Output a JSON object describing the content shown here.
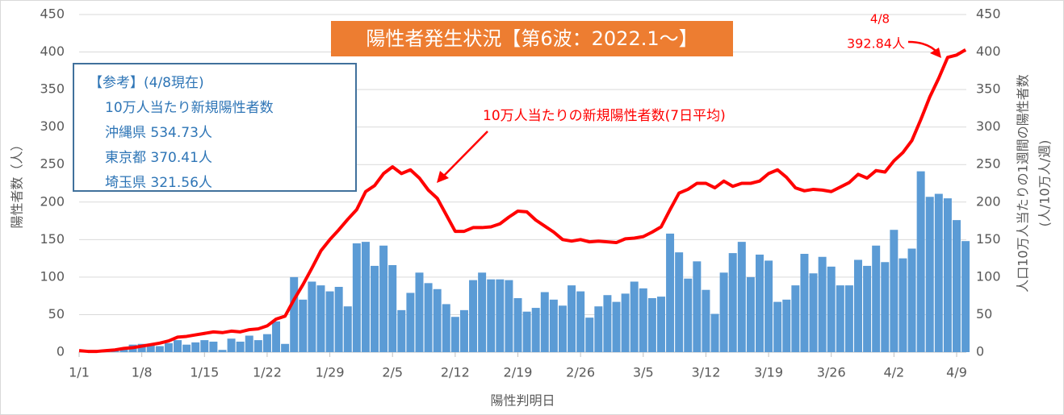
{
  "chart_data": {
    "type": "bar_line",
    "title": "陽性者発生状況【第6波：2022.1～】",
    "x_label": "陽性判明日",
    "y_label": "陽性者数（人）",
    "y2_label": [
      "人口10万人当たりの1週間の陽性者数",
      "(人/10万人/週)"
    ],
    "line_annotation": "10万人当たりの新規陽性者数(7日平均)",
    "point_annotation": [
      "4/8",
      "392.84人"
    ],
    "reference": [
      "【参考】(4/8現在)",
      "10万人当たり新規陽性者数",
      "沖縄県 534.73人",
      "東京都 370.41人",
      "埼玉県 321.56人"
    ],
    "categories": [
      "1/1",
      null,
      null,
      null,
      null,
      null,
      null,
      "1/8",
      null,
      null,
      null,
      null,
      null,
      null,
      "1/15",
      null,
      null,
      null,
      null,
      null,
      null,
      "1/22",
      null,
      null,
      null,
      null,
      null,
      null,
      "1/29",
      null,
      null,
      null,
      null,
      null,
      null,
      "2/5",
      null,
      null,
      null,
      null,
      null,
      null,
      "2/12",
      null,
      null,
      null,
      null,
      null,
      null,
      "2/19",
      null,
      null,
      null,
      null,
      null,
      null,
      "2/26",
      null,
      null,
      null,
      null,
      null,
      null,
      "3/5",
      null,
      null,
      null,
      null,
      null,
      null,
      "3/12",
      null,
      null,
      null,
      null,
      null,
      null,
      "3/19",
      null,
      null,
      null,
      null,
      null,
      null,
      "3/26",
      null,
      null,
      null,
      null,
      null,
      null,
      "4/2",
      null,
      null,
      null,
      null,
      null,
      null,
      "4/9",
      null
    ],
    "series": [
      {
        "name": "陽性者数",
        "type": "bar",
        "axis": "y",
        "color": "#5b9bd5",
        "values": [
          0,
          0,
          1,
          2,
          3,
          5,
          10,
          11,
          9,
          8,
          12,
          16,
          10,
          13,
          16,
          14,
          3,
          18,
          14,
          22,
          16,
          24,
          41,
          11,
          100,
          70,
          94,
          89,
          81,
          87,
          61,
          145,
          147,
          115,
          142,
          116,
          56,
          79,
          106,
          92,
          84,
          64,
          47,
          56,
          96,
          106,
          97,
          97,
          96,
          72,
          54,
          59,
          80,
          70,
          62,
          89,
          81,
          46,
          61,
          76,
          67,
          78,
          94,
          85,
          72,
          74,
          158,
          133,
          98,
          121,
          83,
          51,
          106,
          132,
          147,
          100,
          130,
          122,
          67,
          70,
          89,
          131,
          105,
          127,
          114,
          89,
          89,
          123,
          115,
          142,
          120,
          163,
          125,
          138,
          241,
          207,
          211,
          205,
          176,
          148
        ]
      },
      {
        "name": "10万人当たりの新規陽性者数(7日平均)",
        "type": "line",
        "axis": "y2",
        "color": "#ff0000",
        "values": [
          2,
          1,
          1,
          2,
          3,
          5,
          6,
          8,
          10,
          12,
          15,
          20,
          21,
          23,
          25,
          27,
          26,
          28,
          27,
          30,
          31,
          35,
          44,
          48,
          70,
          90,
          112,
          135,
          150,
          163,
          177,
          190,
          214,
          222,
          238,
          247,
          238,
          243,
          232,
          216,
          205,
          183,
          161,
          161,
          166,
          166,
          167,
          171,
          180,
          188,
          187,
          176,
          168,
          160,
          150,
          148,
          150,
          147,
          148,
          147,
          146,
          151,
          152,
          154,
          160,
          167,
          190,
          212,
          217,
          225,
          225,
          219,
          228,
          221,
          225,
          225,
          228,
          238,
          243,
          233,
          219,
          215,
          217,
          216,
          214,
          220,
          226,
          237,
          232,
          242,
          240,
          255,
          266,
          282,
          310,
          340,
          365,
          392.84,
          396,
          403
        ]
      }
    ],
    "ylim": [
      0,
      450
    ],
    "yticks": [
      0,
      50,
      100,
      150,
      200,
      250,
      300,
      350,
      400,
      450
    ],
    "y2lim": [
      0,
      450
    ],
    "y2ticks": [
      0,
      50,
      100,
      150,
      200,
      250,
      300,
      350,
      400,
      450
    ]
  }
}
